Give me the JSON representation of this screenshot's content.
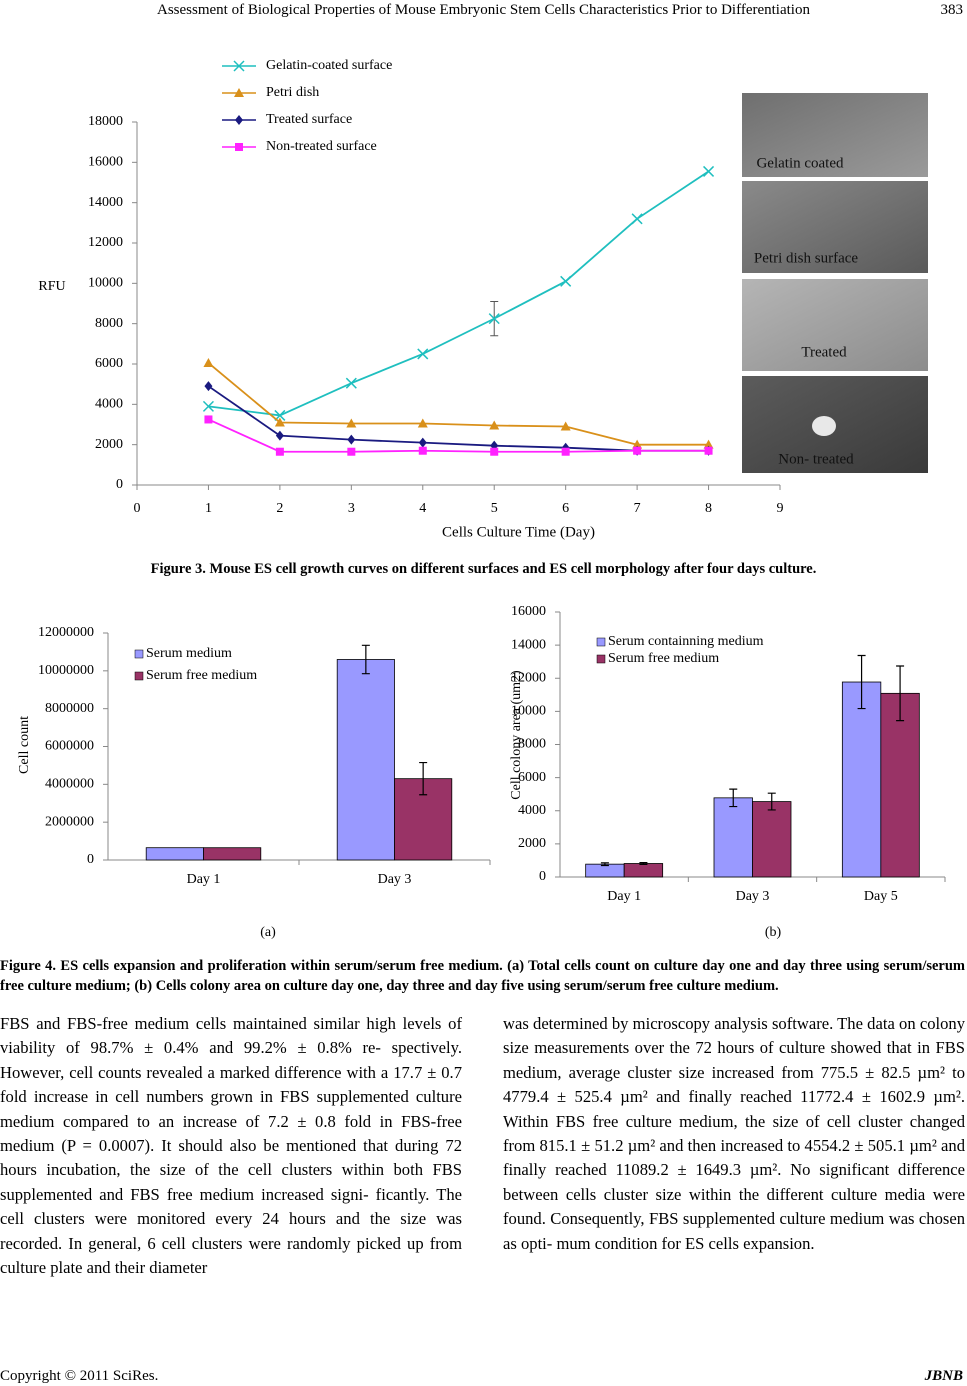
{
  "header": {
    "title": "Assessment of Biological Properties of Mouse Embryonic Stem Cells Characteristics Prior to Differentiation",
    "page": "383"
  },
  "chart_data": [
    {
      "type": "line",
      "xlabel": "Cells Culture Time (Day)",
      "ylabel": "RFU",
      "x": [
        1,
        2,
        3,
        4,
        5,
        6,
        7,
        8
      ],
      "xlim": [
        0,
        9
      ],
      "xticks": [
        0,
        1,
        2,
        3,
        4,
        5,
        6,
        7,
        8,
        9
      ],
      "ylim": [
        0,
        18000
      ],
      "yticks": [
        0,
        2000,
        4000,
        6000,
        8000,
        10000,
        12000,
        14000,
        16000,
        18000
      ],
      "legend": "upper left",
      "series": [
        {
          "name": "Gelatin-coated surface",
          "color": "#1fbfbf",
          "marker": "x",
          "values": [
            3900,
            3450,
            5050,
            6500,
            8250,
            10100,
            13200,
            15550
          ],
          "errors": [
            null,
            null,
            null,
            null,
            850,
            null,
            null,
            null
          ]
        },
        {
          "name": "Petri dish",
          "color": "#d9901a",
          "marker": "triangle",
          "values": [
            6050,
            3100,
            3050,
            3050,
            2950,
            2900,
            2000,
            2000
          ]
        },
        {
          "name": "Treated surface",
          "color": "#1a1a80",
          "marker": "diamond",
          "values": [
            4900,
            2450,
            2250,
            2100,
            1950,
            1850,
            1700,
            1700
          ]
        },
        {
          "name": "Non-treated surface",
          "color": "#ff22ff",
          "marker": "square",
          "values": [
            3250,
            1650,
            1650,
            1700,
            1650,
            1650,
            1700,
            1700
          ]
        }
      ]
    },
    {
      "type": "bar",
      "ylabel": "Cell count",
      "categories": [
        "Day 1",
        "Day 3"
      ],
      "ylim": [
        0,
        12000000
      ],
      "yticks": [
        0,
        2000000,
        4000000,
        6000000,
        8000000,
        10000000,
        12000000
      ],
      "legend": "upper left",
      "series": [
        {
          "name": "Serum medium",
          "color": "#9999ff",
          "values": [
            650000,
            10600000
          ],
          "errors": [
            null,
            750000
          ]
        },
        {
          "name": "Serum free medium",
          "color": "#993366",
          "values": [
            650000,
            4300000
          ],
          "errors": [
            null,
            850000
          ]
        }
      ]
    },
    {
      "type": "bar",
      "ylabel": "Cell colony area (um2)",
      "categories": [
        "Day 1",
        "Day 3",
        "Day 5"
      ],
      "ylim": [
        0,
        16000
      ],
      "yticks": [
        0,
        2000,
        4000,
        6000,
        8000,
        10000,
        12000,
        14000,
        16000
      ],
      "legend": "upper left",
      "series": [
        {
          "name": "Serum containning medium",
          "color": "#9999ff",
          "values": [
            775.5,
            4779.4,
            11772.4
          ],
          "errors": [
            82.5,
            525.4,
            1602.9
          ]
        },
        {
          "name": "Serum free medium",
          "color": "#993366",
          "values": [
            815.1,
            4554.2,
            11089.2
          ],
          "errors": [
            51.2,
            505.1,
            1649.3
          ]
        }
      ]
    }
  ],
  "figure3_panels": [
    "Gelatin coated",
    "Petri dish surface",
    "Treated",
    "Non- treated"
  ],
  "figure3_caption": "Figure 3. Mouse ES cell growth curves on different surfaces and ES cell morphology after four days culture.",
  "figure4_panel_labels": [
    "(a)",
    "(b)"
  ],
  "figure4_caption": "Figure 4. ES cells expansion and proliferation within serum/serum free medium. (a) Total cells count on culture day one and day three using serum/serum free culture medium; (b) Cells colony area on culture day one, day three and day five using serum/serum free culture medium.",
  "body": [
    "FBS and FBS-free medium cells maintained similar high levels of viability of 98.7% ± 0.4% and 99.2% ± 0.8% re- spectively. However, cell counts revealed a marked difference with a 17.7 ± 0.7 fold increase in cell numbers grown in FBS supplemented culture medium compared to an increase of 7.2 ± 0.8 fold in FBS-free medium (P = 0.0007). It should also be mentioned that during 72 hours incubation, the size of the cell clusters within both FBS supplemented and FBS free medium increased signi- ficantly. The cell clusters were monitored every 24 hours and the size was recorded. In general, 6 cell clusters were randomly picked up from culture plate and their diameter",
    "was determined by microscopy analysis software. The data on colony size measurements over the 72 hours of culture showed that in FBS medium, average cluster size increased from 775.5 ± 82.5 µm² to 4779.4 ± 525.4 µm² and finally reached 11772.4 ± 1602.9 µm². Within FBS free culture medium, the size of cell cluster changed from 815.1 ± 51.2 µm² and then increased to 4554.2 ± 505.1 µm² and finally reached 11089.2 ± 1649.3 µm². No significant difference between cells cluster size within the different culture media were found. Consequently, FBS supplemented culture medium was chosen as opti- mum condition for ES cells expansion."
  ],
  "footer": {
    "copyright": "Copyright © 2011 SciRes.",
    "journal": "JBNB"
  }
}
